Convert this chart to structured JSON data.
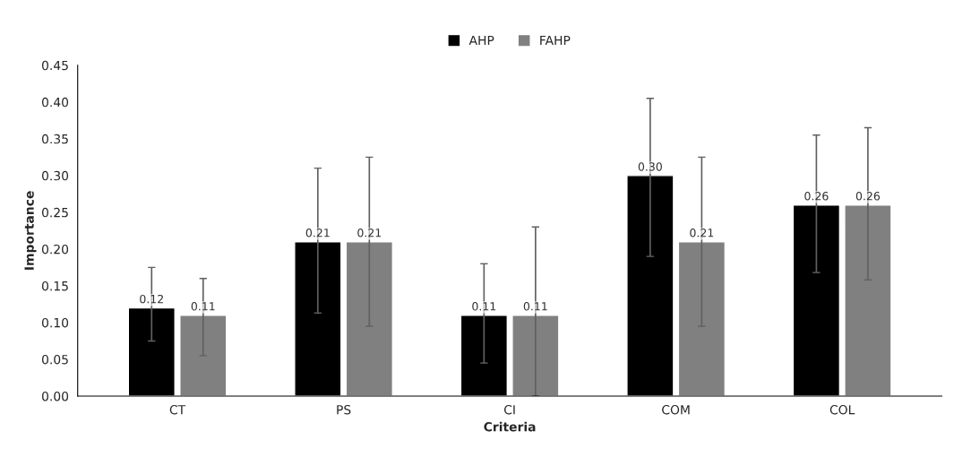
{
  "chart_data": {
    "type": "bar",
    "xlabel": "Criteria",
    "ylabel": "Importance",
    "categories": [
      "CT",
      "PS",
      "CI",
      "COM",
      "COL"
    ],
    "series": [
      {
        "name": "AHP",
        "color": "#000000",
        "values": [
          0.12,
          0.21,
          0.11,
          0.3,
          0.26
        ],
        "value_labels": [
          "0.12",
          "0.21",
          "0.11",
          "0.30",
          "0.26"
        ],
        "errors": [
          [
            0.075,
            0.175
          ],
          [
            0.113,
            0.31
          ],
          [
            0.045,
            0.18
          ],
          [
            0.19,
            0.405
          ],
          [
            0.168,
            0.355
          ]
        ]
      },
      {
        "name": "FAHP",
        "color": "#808080",
        "values": [
          0.11,
          0.21,
          0.11,
          0.21,
          0.26
        ],
        "value_labels": [
          "0.11",
          "0.21",
          "0.11",
          "0.21",
          "0.26"
        ],
        "errors": [
          [
            0.055,
            0.16
          ],
          [
            0.095,
            0.325
          ],
          [
            0.0,
            0.23
          ],
          [
            0.095,
            0.325
          ],
          [
            0.158,
            0.365
          ]
        ]
      }
    ],
    "ylim": [
      0,
      0.45
    ],
    "yticks": [
      {
        "value": 0,
        "label": "0.00"
      },
      {
        "value": 0.05,
        "label": "0.05"
      },
      {
        "value": 0.1,
        "label": "0.10"
      },
      {
        "value": 0.15,
        "label": "0.15"
      },
      {
        "value": 0.2,
        "label": "0.20"
      },
      {
        "value": 0.25,
        "label": "0.25"
      },
      {
        "value": 0.3,
        "label": "0.30"
      },
      {
        "value": 0.35,
        "label": "0.35"
      },
      {
        "value": 0.4,
        "label": "0.40"
      },
      {
        "value": 0.45,
        "label": "0.45"
      }
    ],
    "legend": "top",
    "grid": false
  }
}
